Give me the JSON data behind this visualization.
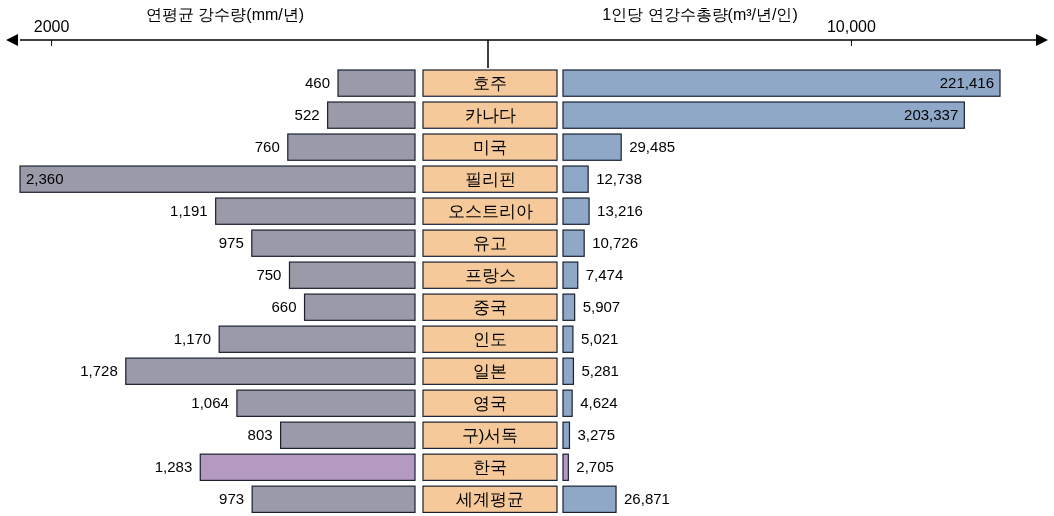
{
  "chart_data": [
    {
      "type": "bar",
      "orientation": "horizontal",
      "xlabel": "연평균 강수량(mm/년)",
      "annotations": [
        "2000"
      ],
      "categories": [
        "호주",
        "카나다",
        "미국",
        "필리핀",
        "오스트리아",
        "유고",
        "프랑스",
        "중국",
        "인도",
        "일본",
        "영국",
        "구)서독",
        "한국",
        "세계평균"
      ],
      "values": [
        460,
        522,
        760,
        2360,
        1191,
        975,
        750,
        660,
        1170,
        1728,
        1064,
        803,
        1283,
        973
      ],
      "value_labels": [
        "460",
        "522",
        "760",
        "2,360",
        "1,191",
        "975",
        "750",
        "660",
        "1,170",
        "1,728",
        "1,064",
        "803",
        "1,283",
        "973"
      ],
      "colors": [
        "#9a9aa8",
        "#9a9aa8",
        "#9a9aa8",
        "#9a9aa8",
        "#9a9aa8",
        "#9a9aa8",
        "#9a9aa8",
        "#9a9aa8",
        "#9a9aa8",
        "#9a9aa8",
        "#9a9aa8",
        "#9a9aa8",
        "#b49ac0",
        "#9a9aa8"
      ]
    },
    {
      "type": "bar",
      "orientation": "horizontal",
      "xlabel": "1인당 연강수총량(m³/년/인)",
      "annotations": [
        "10,000"
      ],
      "categories": [
        null,
        null,
        null,
        null,
        null,
        null,
        null,
        null,
        null,
        null,
        null,
        null,
        null,
        null
      ],
      "values": [
        221416,
        203337,
        29485,
        12738,
        13216,
        10726,
        7474,
        5907,
        5021,
        5281,
        4624,
        3275,
        2705,
        26871
      ],
      "value_labels": [
        "221,416",
        "203,337",
        "29,485",
        "12,738",
        "13,216",
        "10,726",
        "7,474",
        "5,907",
        "5,021",
        "5,281",
        "4,624",
        "3,275",
        "2,705",
        "26,871"
      ],
      "colors": [
        "#8fa8c8",
        "#8fa8c8",
        "#8fa8c8",
        "#8fa8c8",
        "#8fa8c8",
        "#8fa8c8",
        "#8fa8c8",
        "#8fa8c8",
        "#8fa8c8",
        "#8fa8c8",
        "#8fa8c8",
        "#8fa8c8",
        "#b49ac0",
        "#8fa8c8"
      ]
    }
  ]
}
